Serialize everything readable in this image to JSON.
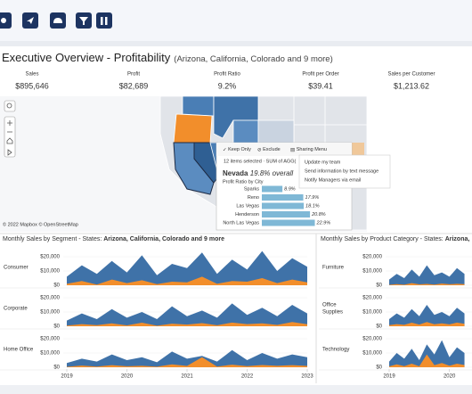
{
  "header": {
    "title": "Executive Overview - Profitability",
    "subtitle": "(Arizona, California, Colorado and 9 more)"
  },
  "kpis": [
    {
      "label": "Sales",
      "value": "$895,646"
    },
    {
      "label": "Profit",
      "value": "$82,689"
    },
    {
      "label": "Profit Ratio",
      "value": "9.2%"
    },
    {
      "label": "Profit per Order",
      "value": "$39.41"
    },
    {
      "label": "Sales per Customer",
      "value": "$1,213.62"
    }
  ],
  "map": {
    "attribution": "© 2022 Mapbox © OpenStreetMap"
  },
  "tooltip": {
    "actions": [
      "Keep Only",
      "Exclude",
      "Sharing Menu"
    ],
    "selection": "12 items selected · SUM of AGG(",
    "state": "Nevada",
    "overall": "19.8% overall",
    "subtitle": "Profit Ratio by City",
    "cities": [
      "Sparks",
      "Reno",
      "Las Vegas",
      "Henderson",
      "North Las Vegas"
    ],
    "values": [
      8.9,
      17.9,
      18.1,
      20.8,
      22.9
    ],
    "value_labels": [
      "8.9%",
      "17.9%",
      "18.1%",
      "20.8%",
      "22.9%"
    ],
    "color": "#7fb8d6"
  },
  "menu": {
    "items": [
      "Update my team",
      "Send information by text message",
      "Notify Managers via email"
    ]
  },
  "segment_chart": {
    "type": "area",
    "title": "Monthly Sales by Segment - States: ",
    "title_states": "Arizona, California, Colorado and 9 more",
    "x": [
      2019,
      2019.25,
      2019.5,
      2019.75,
      2020,
      2020.25,
      2020.5,
      2020.75,
      2021,
      2021.25,
      2021.5,
      2021.75,
      2022,
      2022.25,
      2022.5,
      2022.75,
      2023
    ],
    "xlim": [
      2019,
      2023
    ],
    "xticks": [
      2019,
      2020,
      2021,
      2022,
      2023
    ],
    "ylim": [
      0,
      25000
    ],
    "yticks": [
      {
        "value": 0,
        "label": "$0"
      },
      {
        "value": 10000,
        "label": "$10,000"
      },
      {
        "value": 20000,
        "label": "$20,000"
      }
    ],
    "panels": [
      {
        "label": [
          "Consumer"
        ],
        "series": [
          {
            "color": "#3f72a8",
            "values": [
              6000,
              14000,
              8000,
              17000,
              9000,
              21000,
              7000,
              15000,
              12000,
              23000,
              8000,
              18000,
              11000,
              24000,
              10000,
              19000,
              13000
            ]
          },
          {
            "color": "#f28e2b",
            "values": [
              1000,
              3000,
              500,
              4000,
              1500,
              3500,
              800,
              2500,
              2000,
              6000,
              1000,
              3000,
              2500,
              5000,
              1500,
              4000,
              2000
            ]
          }
        ]
      },
      {
        "label": [
          "Corporate"
        ],
        "series": [
          {
            "color": "#3f72a8",
            "values": [
              4000,
              9000,
              5000,
              12000,
              6000,
              10000,
              5000,
              14000,
              7000,
              11000,
              6000,
              16000,
              8000,
              13000,
              7000,
              15000,
              9000
            ]
          },
          {
            "color": "#f28e2b",
            "values": [
              500,
              1500,
              800,
              2000,
              600,
              2500,
              400,
              1800,
              1200,
              2200,
              700,
              2600,
              1500,
              2000,
              900,
              3000,
              1400
            ]
          }
        ]
      },
      {
        "label": [
          "Home Office"
        ],
        "series": [
          {
            "color": "#3f72a8",
            "values": [
              3000,
              6000,
              4000,
              9000,
              5000,
              7000,
              3500,
              11000,
              6000,
              8000,
              4000,
              12000,
              5000,
              10000,
              6000,
              9000,
              7000
            ]
          },
          {
            "color": "#f28e2b",
            "values": [
              300,
              1200,
              500,
              1500,
              700,
              1000,
              400,
              2000,
              900,
              7000,
              500,
              1800,
              800,
              1600,
              1000,
              1500,
              900
            ]
          }
        ]
      }
    ]
  },
  "category_chart": {
    "type": "area",
    "title": "Monthly Sales by Product Category - States: ",
    "title_states": "Arizona,",
    "x": [
      2019,
      2019.125,
      2019.25,
      2019.375,
      2019.5,
      2019.625,
      2019.75,
      2019.875,
      2020,
      2020.125,
      2020.25
    ],
    "xlim": [
      2019,
      2020.375
    ],
    "xticks": [
      2019,
      2020
    ],
    "ylim": [
      0,
      25000
    ],
    "yticks": [
      {
        "value": 0,
        "label": "$0"
      },
      {
        "value": 10000,
        "label": "$10,000"
      },
      {
        "value": 20000,
        "label": "$20,000"
      }
    ],
    "panels": [
      {
        "label": [
          "Furniture"
        ],
        "series": [
          {
            "color": "#3f72a8",
            "values": [
              4000,
              8000,
              5000,
              11000,
              6000,
              14000,
              7000,
              9000,
              6000,
              12000,
              8000
            ]
          },
          {
            "color": "#f28e2b",
            "values": [
              300,
              800,
              400,
              1500,
              600,
              900,
              500,
              1200,
              700,
              1000,
              800
            ]
          }
        ]
      },
      {
        "label": [
          "Office",
          "Supplies"
        ],
        "series": [
          {
            "color": "#3f72a8",
            "values": [
              5000,
              9000,
              6000,
              12000,
              7000,
              15000,
              8000,
              10000,
              7000,
              13000,
              9000
            ]
          },
          {
            "color": "#f28e2b",
            "values": [
              800,
              1500,
              1000,
              2500,
              1200,
              3000,
              1400,
              2000,
              1300,
              2600,
              1700
            ]
          }
        ]
      },
      {
        "label": [
          "Technology"
        ],
        "series": [
          {
            "color": "#3f72a8",
            "values": [
              4000,
              10000,
              6000,
              13000,
              5000,
              16000,
              9000,
              19000,
              7000,
              14000,
              10000
            ]
          },
          {
            "color": "#f28e2b",
            "values": [
              600,
              2000,
              800,
              2500,
              700,
              9000,
              1500,
              3000,
              1100,
              2500,
              1600
            ]
          }
        ]
      }
    ]
  }
}
